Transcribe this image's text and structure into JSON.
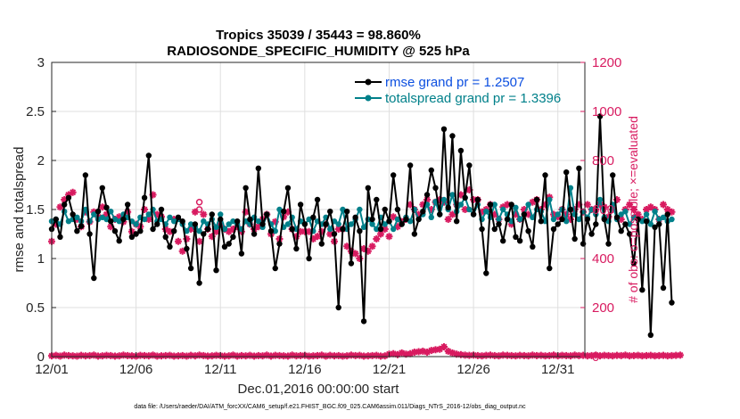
{
  "chart_data": {
    "type": "line",
    "title": "Tropics 35039 / 35443 = 98.860%",
    "subtitle": "RADIOSONDE_SPECIFIC_HUMIDITY @ 525 hPa",
    "xlabel": "Dec.01,2016 00:00:00 start",
    "ylabel": "rmse and totalspread",
    "y2label": "# of obs: o=possible; ×=evaluated",
    "footnote": "data file: /Users/raeder/DAI/ATM_forcXX/CAM6_setup/f.e21.FHIST_BGC.f09_025.CAM6assim.011/Diags_NTrS_2016-12/obs_diag_output.nc",
    "xlim": [
      0,
      31.6
    ],
    "ylim": [
      0,
      3
    ],
    "y2lim": [
      0,
      1200
    ],
    "x_ticks": [
      0,
      5,
      10,
      15,
      20,
      25,
      30
    ],
    "x_tick_labels": [
      "12/01",
      "12/06",
      "12/11",
      "12/16",
      "12/21",
      "12/26",
      "12/31"
    ],
    "y_ticks": [
      "0",
      "0.5",
      "1",
      "1.5",
      "2",
      "2.5",
      "3"
    ],
    "y2_ticks": [
      "0",
      "200",
      "400",
      "600",
      "800",
      "1000",
      "1200"
    ],
    "grid": true,
    "legend": {
      "position": "top-right",
      "entries": [
        {
          "label": "rmse grand pr = 1.2507",
          "color": "#000000"
        },
        {
          "label": "totalspread grand pr = 1.3396",
          "color": "#00808a"
        }
      ]
    },
    "colors": {
      "rmse": "#000000",
      "spread": "#00808a",
      "obs": "#d81b60",
      "grid": "#dfdfdf"
    },
    "x_step": 0.25,
    "series": [
      {
        "name": "rmse",
        "values": [
          1.3,
          1.4,
          1.22,
          1.55,
          1.62,
          1.45,
          1.28,
          1.33,
          1.85,
          1.25,
          0.8,
          1.48,
          1.72,
          1.52,
          1.38,
          1.28,
          1.18,
          1.4,
          1.55,
          1.22,
          1.25,
          1.28,
          1.62,
          2.05,
          1.3,
          1.35,
          1.5,
          1.22,
          1.12,
          1.28,
          1.42,
          1.38,
          1.1,
          0.9,
          1.35,
          0.75,
          1.25,
          1.3,
          1.45,
          0.88,
          1.4,
          1.12,
          1.15,
          1.22,
          1.38,
          1.05,
          1.72,
          1.4,
          1.25,
          1.92,
          1.35,
          1.45,
          1.28,
          0.9,
          1.15,
          1.48,
          1.72,
          1.3,
          1.1,
          1.55,
          1.35,
          1.0,
          1.42,
          1.6,
          1.15,
          1.35,
          1.48,
          1.25,
          0.5,
          1.3,
          1.48,
          0.95,
          1.42,
          1.28,
          0.36,
          1.72,
          1.4,
          1.6,
          1.3,
          1.5,
          1.38,
          1.85,
          1.5,
          1.35,
          1.4,
          1.95,
          1.25,
          1.4,
          1.48,
          1.65,
          1.9,
          1.72,
          1.45,
          2.32,
          1.52,
          2.25,
          1.38,
          2.1,
          1.62,
          1.95,
          1.45,
          1.6,
          1.3,
          0.85,
          1.55,
          1.3,
          1.35,
          1.18,
          1.4,
          1.55,
          1.22,
          1.18,
          1.45,
          1.28,
          1.12,
          1.6,
          1.38,
          1.85,
          0.9,
          1.3,
          1.35,
          1.4,
          1.88,
          1.5,
          1.2,
          1.92,
          1.15,
          1.4,
          1.25,
          1.35,
          2.45,
          1.4,
          1.15,
          1.85,
          1.42,
          1.28,
          1.35,
          1.25,
          0.95,
          1.4,
          0.68,
          1.38,
          0.22,
          1.32,
          1.35,
          0.7,
          1.45,
          0.55
        ]
      },
      {
        "name": "totalspread",
        "values": [
          1.38,
          1.4,
          1.35,
          1.48,
          1.38,
          1.4,
          1.42,
          1.38,
          1.5,
          1.38,
          1.45,
          1.4,
          1.42,
          1.4,
          1.48,
          1.4,
          1.38,
          1.45,
          1.42,
          1.38,
          1.35,
          1.42,
          1.4,
          1.45,
          1.5,
          1.38,
          1.4,
          1.35,
          1.42,
          1.38,
          1.4,
          1.35,
          1.28,
          1.35,
          1.32,
          1.28,
          1.38,
          1.35,
          1.4,
          1.32,
          1.45,
          1.3,
          1.35,
          1.38,
          1.35,
          1.3,
          1.38,
          1.35,
          1.42,
          1.38,
          1.32,
          1.45,
          1.35,
          1.28,
          1.5,
          1.32,
          1.35,
          1.42,
          1.3,
          1.38,
          1.35,
          1.4,
          1.28,
          1.38,
          1.35,
          1.42,
          1.3,
          1.38,
          1.35,
          1.5,
          1.3,
          1.35,
          1.4,
          1.5,
          1.32,
          1.4,
          1.35,
          1.3,
          1.42,
          1.35,
          1.38,
          1.3,
          1.4,
          1.35,
          1.42,
          1.38,
          1.5,
          1.4,
          1.45,
          1.55,
          1.42,
          1.58,
          1.45,
          1.6,
          1.5,
          1.65,
          1.48,
          1.55,
          1.62,
          1.5,
          1.45,
          1.55,
          1.4,
          1.48,
          1.42,
          1.55,
          1.4,
          1.5,
          1.45,
          1.38,
          1.52,
          1.4,
          1.45,
          1.55,
          1.42,
          1.5,
          1.48,
          1.38,
          1.6,
          1.4,
          1.45,
          1.5,
          1.38,
          1.72,
          1.45,
          1.4,
          1.48,
          1.42,
          1.5,
          1.45,
          1.6,
          1.42,
          1.38,
          1.55,
          1.4,
          1.45,
          1.48,
          1.35,
          1.42,
          1.4,
          1.38,
          1.45,
          1.35,
          1.48,
          1.4,
          1.42,
          1.38,
          1.4
        ]
      }
    ],
    "obs_evaluated_top": [
      470,
      540,
      610,
      640,
      660,
      670,
      560,
      530,
      590,
      550,
      590,
      570,
      610,
      580,
      530,
      560,
      570,
      550,
      590,
      510,
      540,
      530,
      600,
      560,
      660,
      580,
      570,
      520,
      510,
      560,
      470,
      430,
      480,
      520,
      590,
      470,
      580,
      520,
      490,
      510,
      540,
      520,
      510,
      520,
      530,
      510,
      590,
      540,
      520,
      530,
      560,
      580,
      500,
      550,
      480,
      570,
      590,
      520,
      490,
      510,
      510,
      510,
      480,
      490,
      510,
      540,
      500,
      470,
      520,
      520,
      450,
      430,
      420,
      400,
      440,
      430,
      450,
      480,
      500,
      520,
      490,
      570,
      530,
      550,
      560,
      620,
      600,
      580,
      620,
      640,
      600,
      630,
      640,
      630,
      560,
      580,
      620,
      660,
      600,
      680,
      640,
      640,
      590,
      600,
      620,
      580,
      560,
      610,
      620,
      540,
      580,
      560,
      600,
      580,
      630,
      640,
      600,
      620,
      650,
      580,
      570,
      600,
      580,
      560,
      600,
      620,
      590,
      620,
      600,
      600,
      620,
      610,
      570,
      600,
      640,
      560,
      600,
      620,
      600,
      580,
      560,
      600,
      610,
      600,
      560,
      620,
      600,
      590
    ],
    "obs_possible_top": [
      {
        "x": 8.75,
        "value": 630
      },
      {
        "x": 8.75,
        "value": 600
      }
    ],
    "obs_bottom_evaluated": [
      3,
      5,
      2,
      6,
      4,
      3,
      2,
      5,
      3,
      4,
      6,
      2,
      3,
      5,
      4,
      2,
      3,
      6,
      4,
      3,
      2,
      5,
      4,
      3,
      6,
      2,
      3,
      4,
      5,
      2,
      3,
      4,
      2,
      5,
      3,
      6,
      4,
      2,
      3,
      5,
      4,
      2,
      3,
      6,
      2,
      4,
      3,
      5,
      2,
      4,
      3,
      6,
      2,
      5,
      4,
      3,
      2,
      6,
      3,
      4,
      5,
      2,
      3,
      4,
      6,
      2,
      5,
      3,
      4,
      2,
      3,
      6,
      4,
      5,
      2,
      3,
      4,
      5,
      2,
      3,
      10,
      12,
      8,
      15,
      10,
      12,
      18,
      20,
      22,
      18,
      25,
      28,
      30,
      40,
      22,
      15,
      10,
      8,
      6,
      5,
      6,
      4,
      3,
      5,
      6,
      4,
      3,
      6,
      5,
      4,
      3,
      5,
      4,
      3,
      6,
      4,
      5,
      3,
      4,
      6,
      3,
      5,
      4,
      3,
      6,
      4,
      5,
      3,
      4,
      6,
      3,
      5,
      4,
      3,
      5,
      4,
      6,
      3,
      4,
      5,
      3,
      4,
      5,
      3,
      4,
      5,
      3,
      4,
      5,
      6
    ]
  }
}
